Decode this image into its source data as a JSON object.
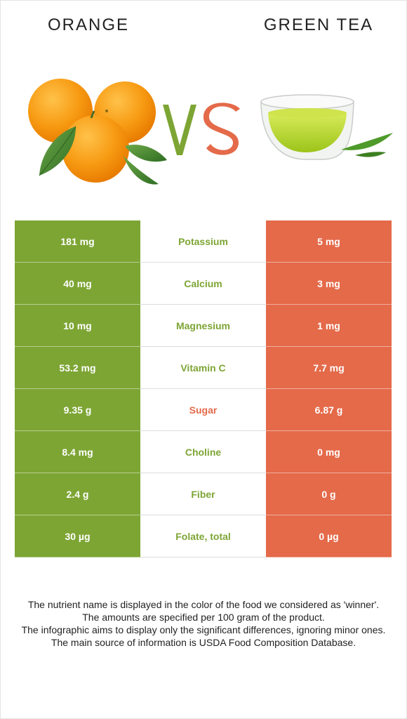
{
  "colors": {
    "winner_green": "#7da534",
    "loser_red": "#e46a4a",
    "vs_green": "#7da534",
    "vs_red": "#e46a4a"
  },
  "header": {
    "left_food": "ORANGE",
    "right_food": "GREEN TEA",
    "left_image_icon": "orange-fruit-icon",
    "right_image_icon": "green-tea-cup-icon"
  },
  "rows": [
    {
      "nutrient": "Potassium",
      "left": "181 mg",
      "right": "5 mg",
      "winner": "left"
    },
    {
      "nutrient": "Calcium",
      "left": "40 mg",
      "right": "3 mg",
      "winner": "left"
    },
    {
      "nutrient": "Magnesium",
      "left": "10 mg",
      "right": "1 mg",
      "winner": "left"
    },
    {
      "nutrient": "Vitamin C",
      "left": "53.2 mg",
      "right": "7.7 mg",
      "winner": "left"
    },
    {
      "nutrient": "Sugar",
      "left": "9.35 g",
      "right": "6.87 g",
      "winner": "right"
    },
    {
      "nutrient": "Choline",
      "left": "8.4 mg",
      "right": "0 mg",
      "winner": "left"
    },
    {
      "nutrient": "Fiber",
      "left": "2.4 g",
      "right": "0 g",
      "winner": "left"
    },
    {
      "nutrient": "Folate, total",
      "left": "30 µg",
      "right": "0 µg",
      "winner": "left"
    }
  ],
  "footer": {
    "line1": "The nutrient name is displayed in the color of the food we considered as 'winner'.",
    "line2": "The amounts are specified per 100 gram of the product.",
    "line3": "The infographic aims to display only the significant differences, ignoring minor ones.",
    "line4": "The main source of information is USDA Food Composition Database."
  }
}
